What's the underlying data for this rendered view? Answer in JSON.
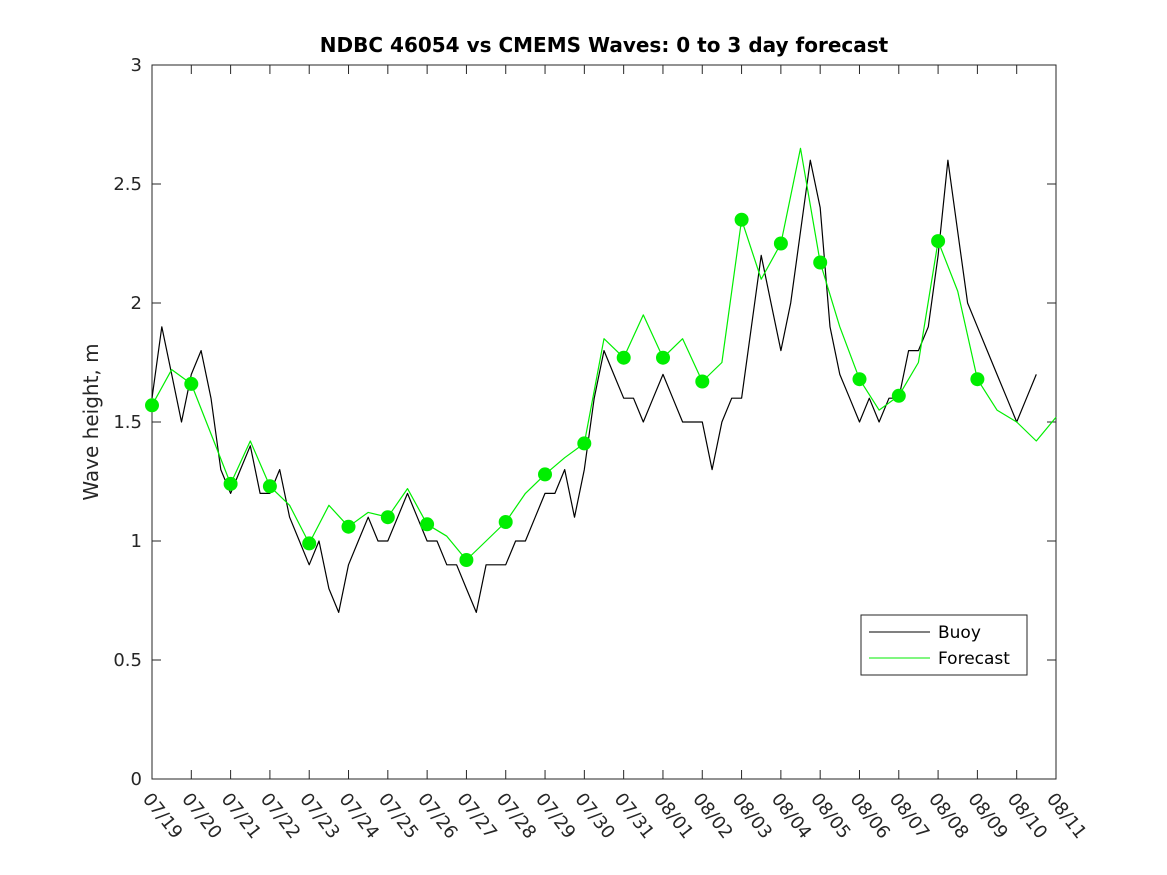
{
  "chart_data": {
    "type": "line",
    "title": "NDBC 46054 vs CMEMS Waves: 0 to 3 day forecast",
    "xlabel": "",
    "ylabel": "Wave height, m",
    "ylim": [
      0,
      3
    ],
    "y_ticks": [
      "0",
      "0.5",
      "1",
      "1.5",
      "2",
      "2.5",
      "3"
    ],
    "x_ticks": [
      "07/19",
      "07/20",
      "07/21",
      "07/22",
      "07/23",
      "07/24",
      "07/25",
      "07/26",
      "07/27",
      "07/28",
      "07/29",
      "07/30",
      "07/31",
      "08/01",
      "08/02",
      "08/03",
      "08/04",
      "08/05",
      "08/06",
      "08/07",
      "08/08",
      "08/09",
      "08/10",
      "08/11"
    ],
    "grid": false,
    "legend": {
      "placement": "lower-right",
      "entries": [
        "Buoy",
        "Forecast"
      ]
    },
    "colors": {
      "buoy": "#000000",
      "forecast": "#00ee00",
      "markers": "#00ee00"
    },
    "series": [
      {
        "name": "Buoy",
        "x": [
          "07/19",
          "07/19 06:00",
          "07/19 12:00",
          "07/19 18:00",
          "07/20",
          "07/20 06:00",
          "07/20 12:00",
          "07/20 18:00",
          "07/21",
          "07/21 06:00",
          "07/21 12:00",
          "07/21 18:00",
          "07/22",
          "07/22 06:00",
          "07/22 12:00",
          "07/22 18:00",
          "07/23",
          "07/23 06:00",
          "07/23 12:00",
          "07/23 18:00",
          "07/24",
          "07/24 06:00",
          "07/24 12:00",
          "07/24 18:00",
          "07/25",
          "07/25 06:00",
          "07/25 12:00",
          "07/25 18:00",
          "07/26",
          "07/26 06:00",
          "07/26 12:00",
          "07/26 18:00",
          "07/27",
          "07/27 06:00",
          "07/27 12:00",
          "07/27 18:00",
          "07/28",
          "07/28 06:00",
          "07/28 12:00",
          "07/28 18:00",
          "07/29",
          "07/29 06:00",
          "07/29 12:00",
          "07/29 18:00",
          "07/30",
          "07/30 06:00",
          "07/30 12:00",
          "07/30 18:00",
          "07/31",
          "07/31 06:00",
          "07/31 12:00",
          "07/31 18:00",
          "08/01",
          "08/01 06:00",
          "08/01 12:00",
          "08/01 18:00",
          "08/02",
          "08/02 06:00",
          "08/02 12:00",
          "08/02 18:00",
          "08/03",
          "08/03 06:00",
          "08/03 12:00",
          "08/03 18:00",
          "08/04",
          "08/04 06:00",
          "08/04 12:00",
          "08/04 18:00",
          "08/05",
          "08/05 06:00",
          "08/05 12:00",
          "08/05 18:00",
          "08/06",
          "08/06 06:00",
          "08/06 12:00",
          "08/06 18:00",
          "08/07",
          "08/07 06:00",
          "08/07 12:00",
          "08/07 18:00",
          "08/08",
          "08/08 06:00",
          "08/08 12:00",
          "08/08 18:00",
          "08/09",
          "08/09 06:00",
          "08/09 12:00",
          "08/09 18:00",
          "08/10",
          "08/10 06:00",
          "08/10 12:00"
        ],
        "values": [
          1.6,
          1.9,
          1.7,
          1.5,
          1.7,
          1.8,
          1.6,
          1.3,
          1.2,
          1.3,
          1.4,
          1.2,
          1.2,
          1.3,
          1.1,
          1.0,
          0.9,
          1.0,
          0.8,
          0.7,
          0.9,
          1.0,
          1.1,
          1.0,
          1.0,
          1.1,
          1.2,
          1.1,
          1.0,
          1.0,
          0.9,
          0.9,
          0.8,
          0.7,
          0.9,
          0.9,
          0.9,
          1.0,
          1.0,
          1.1,
          1.2,
          1.2,
          1.3,
          1.1,
          1.3,
          1.6,
          1.8,
          1.7,
          1.6,
          1.6,
          1.5,
          1.6,
          1.7,
          1.6,
          1.5,
          1.5,
          1.5,
          1.3,
          1.5,
          1.6,
          1.6,
          1.9,
          2.2,
          2.0,
          1.8,
          2.0,
          2.3,
          2.6,
          2.4,
          1.9,
          1.7,
          1.6,
          1.5,
          1.6,
          1.5,
          1.6,
          1.6,
          1.8,
          1.8,
          1.9,
          2.2,
          2.6,
          2.3,
          2.0,
          1.9,
          1.8,
          1.7,
          1.6,
          1.5,
          1.6,
          1.7
        ]
      },
      {
        "name": "Forecast",
        "x": [
          "07/19",
          "07/19 12:00",
          "07/20",
          "07/20 12:00",
          "07/21",
          "07/21 12:00",
          "07/22",
          "07/22 12:00",
          "07/23",
          "07/23 12:00",
          "07/24",
          "07/24 12:00",
          "07/25",
          "07/25 12:00",
          "07/26",
          "07/26 12:00",
          "07/27",
          "07/27 12:00",
          "07/28",
          "07/28 12:00",
          "07/29",
          "07/29 12:00",
          "07/30",
          "07/30 12:00",
          "07/31",
          "07/31 12:00",
          "08/01",
          "08/01 12:00",
          "08/02",
          "08/02 12:00",
          "08/03",
          "08/03 12:00",
          "08/04",
          "08/04 12:00",
          "08/05",
          "08/05 12:00",
          "08/06",
          "08/06 12:00",
          "08/07",
          "08/07 12:00",
          "08/08",
          "08/08 12:00",
          "08/09",
          "08/09 12:00",
          "08/10",
          "08/10 12:00",
          "08/11"
        ],
        "values": [
          1.57,
          1.72,
          1.66,
          1.45,
          1.24,
          1.42,
          1.23,
          1.15,
          0.99,
          1.15,
          1.06,
          1.12,
          1.1,
          1.22,
          1.07,
          1.02,
          0.92,
          1.0,
          1.08,
          1.2,
          1.28,
          1.35,
          1.41,
          1.85,
          1.77,
          1.95,
          1.77,
          1.85,
          1.67,
          1.75,
          2.35,
          2.1,
          2.25,
          2.65,
          2.17,
          1.9,
          1.68,
          1.55,
          1.61,
          1.75,
          2.26,
          2.05,
          1.68,
          1.55,
          1.5,
          1.42,
          1.52
        ]
      }
    ],
    "markers": {
      "x": [
        "07/19",
        "07/20",
        "07/21",
        "07/22",
        "07/23",
        "07/24",
        "07/25",
        "07/26",
        "07/27",
        "07/28",
        "07/29",
        "07/30",
        "07/31",
        "08/01",
        "08/02",
        "08/03",
        "08/04",
        "08/05",
        "08/06",
        "08/07",
        "08/08",
        "08/09"
      ],
      "values": [
        1.57,
        1.66,
        1.24,
        1.23,
        0.99,
        1.06,
        1.1,
        1.07,
        0.92,
        1.08,
        1.28,
        1.41,
        1.77,
        1.77,
        1.67,
        2.35,
        2.25,
        2.17,
        1.68,
        1.61,
        2.26,
        1.68
      ]
    }
  }
}
